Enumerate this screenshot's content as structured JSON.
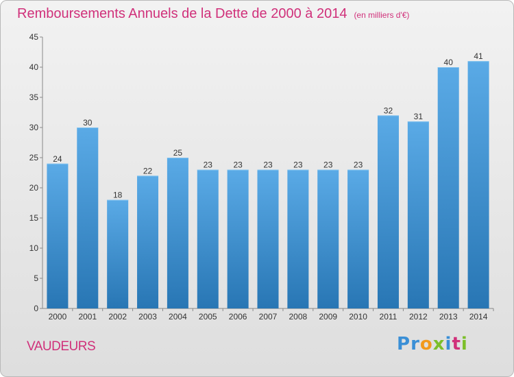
{
  "header": {
    "title": "Remboursements Annuels de la Dette de 2000 à 2014",
    "unit": "(en milliers d'€)"
  },
  "footer": {
    "commune": "VAUDEURS",
    "logo_letters": [
      {
        "ch": "P",
        "color": "#3a8fd6"
      },
      {
        "ch": "r",
        "color": "#3a8fd6"
      },
      {
        "ch": "o",
        "color": "#f29a1c"
      },
      {
        "ch": "x",
        "color": "#7cbf2a"
      },
      {
        "ch": "i",
        "color": "#3a8fd6"
      },
      {
        "ch": "t",
        "color": "#d0307a"
      },
      {
        "ch": "i",
        "color": "#7cbf2a"
      }
    ]
  },
  "chart_data": {
    "type": "bar",
    "title": "Remboursements Annuels de la Dette de 2000 à 2014",
    "ylabel": "",
    "xlabel": "",
    "categories": [
      "2000",
      "2001",
      "2002",
      "2003",
      "2004",
      "2005",
      "2006",
      "2007",
      "2008",
      "2009",
      "2010",
      "2011",
      "2012",
      "2013",
      "2014"
    ],
    "values": [
      24,
      30,
      18,
      22,
      25,
      23,
      23,
      23,
      23,
      23,
      23,
      32,
      31,
      40,
      41
    ],
    "ylim": [
      0,
      45
    ],
    "yticks": [
      0,
      5,
      10,
      15,
      20,
      25,
      30,
      35,
      40,
      45
    ],
    "grid": false,
    "bar_color_top": "#5aaae6",
    "bar_color_bottom": "#2876b4"
  }
}
